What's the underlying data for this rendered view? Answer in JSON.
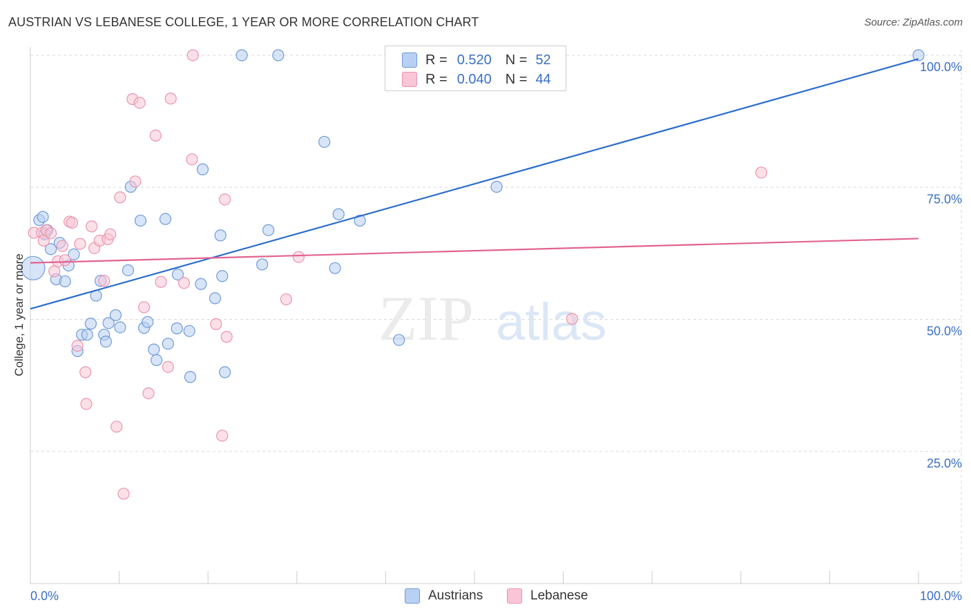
{
  "title": "AUSTRIAN VS LEBANESE COLLEGE, 1 YEAR OR MORE CORRELATION CHART",
  "source": "Source: ZipAtlas.com",
  "watermark": {
    "zip": "ZIP",
    "atlas": "atlas"
  },
  "colors": {
    "austrians_fill": "#b8d0f2",
    "austrians_stroke": "#6f9ad8",
    "austrians_line": "#2a6ccc",
    "lebanese_fill": "#f8c6d6",
    "lebanese_stroke": "#eb93ae",
    "lebanese_line": "#e2628e",
    "axis_text": "#3a6fc4",
    "grid": "#d8d8d8"
  },
  "legend": {
    "r_label": "R =",
    "n_label": "N =",
    "rows": [
      {
        "series": "Austrians",
        "r": "0.520",
        "n": "52"
      },
      {
        "series": "Lebanese",
        "r": "0.040",
        "n": "44"
      }
    ]
  },
  "bottom_legend": [
    "Austrians",
    "Lebanese"
  ],
  "chart_data": {
    "type": "scatter",
    "title": "AUSTRIAN VS LEBANESE COLLEGE, 1 YEAR OR MORE CORRELATION CHART",
    "xlabel": "",
    "ylabel": "College, 1 year or more",
    "xlim": [
      0,
      100
    ],
    "ylim": [
      0,
      100
    ],
    "x_tick_labels": [
      "0.0%",
      "100.0%"
    ],
    "y_tick_labels": [
      {
        "value": 25,
        "label": "25.0%"
      },
      {
        "value": 50,
        "label": "50.0%"
      },
      {
        "value": 75,
        "label": "75.0%"
      },
      {
        "value": 100,
        "label": "100.0%"
      }
    ],
    "grid": true,
    "legend_position": "top-center",
    "series": [
      {
        "name": "Austrians",
        "r": 0.52,
        "n": 52,
        "trend": [
          [
            0,
            52.0
          ],
          [
            100,
            99.3
          ]
        ],
        "points": [
          [
            1.0,
            68.8
          ],
          [
            1.4,
            69.4
          ],
          [
            1.9,
            66.9
          ],
          [
            2.3,
            63.3
          ],
          [
            3.3,
            64.5
          ],
          [
            2.9,
            57.6
          ],
          [
            3.9,
            57.2
          ],
          [
            4.3,
            60.2
          ],
          [
            4.9,
            62.3
          ],
          [
            5.3,
            44.0
          ],
          [
            5.8,
            47.1
          ],
          [
            6.4,
            47.1
          ],
          [
            6.8,
            49.2
          ],
          [
            7.4,
            54.5
          ],
          [
            7.9,
            57.3
          ],
          [
            8.3,
            47.1
          ],
          [
            8.5,
            45.8
          ],
          [
            8.8,
            49.3
          ],
          [
            9.6,
            50.8
          ],
          [
            10.1,
            48.5
          ],
          [
            11.0,
            59.3
          ],
          [
            11.3,
            75.1
          ],
          [
            12.4,
            68.7
          ],
          [
            12.8,
            48.4
          ],
          [
            13.2,
            49.5
          ],
          [
            13.9,
            44.3
          ],
          [
            14.2,
            42.3
          ],
          [
            15.2,
            69.0
          ],
          [
            15.5,
            45.4
          ],
          [
            16.5,
            48.3
          ],
          [
            16.6,
            58.5
          ],
          [
            17.9,
            47.8
          ],
          [
            18.0,
            39.1
          ],
          [
            19.2,
            56.7
          ],
          [
            19.4,
            78.4
          ],
          [
            20.8,
            54.0
          ],
          [
            21.4,
            65.9
          ],
          [
            21.6,
            58.2
          ],
          [
            21.9,
            40.0
          ],
          [
            23.8,
            100.0
          ],
          [
            26.1,
            60.4
          ],
          [
            26.8,
            66.9
          ],
          [
            27.9,
            100.0
          ],
          [
            33.1,
            83.6
          ],
          [
            34.3,
            59.7
          ],
          [
            34.7,
            69.9
          ],
          [
            37.1,
            68.7
          ],
          [
            41.5,
            46.1
          ],
          [
            52.5,
            75.1
          ],
          [
            100.0,
            100.0
          ],
          [
            0.3,
            59.7
          ],
          [
            1.6,
            66.1
          ]
        ]
      },
      {
        "name": "Lebanese",
        "r": 0.04,
        "n": 44,
        "trend": [
          [
            0,
            60.7
          ],
          [
            100,
            65.3
          ]
        ],
        "points": [
          [
            0.4,
            66.4
          ],
          [
            1.3,
            66.4
          ],
          [
            1.5,
            64.9
          ],
          [
            1.8,
            66.9
          ],
          [
            2.3,
            66.3
          ],
          [
            2.7,
            59.1
          ],
          [
            3.1,
            61.0
          ],
          [
            3.6,
            63.9
          ],
          [
            3.9,
            61.2
          ],
          [
            4.4,
            68.5
          ],
          [
            4.7,
            68.3
          ],
          [
            5.3,
            45.0
          ],
          [
            5.6,
            64.3
          ],
          [
            6.2,
            40.0
          ],
          [
            6.3,
            34.0
          ],
          [
            6.9,
            67.6
          ],
          [
            7.2,
            63.5
          ],
          [
            7.8,
            64.9
          ],
          [
            8.3,
            57.3
          ],
          [
            8.7,
            65.2
          ],
          [
            9.0,
            66.1
          ],
          [
            9.7,
            29.7
          ],
          [
            10.1,
            73.1
          ],
          [
            10.5,
            17.0
          ],
          [
            11.5,
            91.7
          ],
          [
            11.8,
            76.1
          ],
          [
            12.3,
            91.0
          ],
          [
            12.8,
            52.3
          ],
          [
            13.3,
            36.0
          ],
          [
            14.1,
            84.8
          ],
          [
            14.7,
            57.1
          ],
          [
            15.5,
            41.0
          ],
          [
            15.8,
            91.8
          ],
          [
            17.3,
            56.9
          ],
          [
            18.3,
            100.0
          ],
          [
            18.2,
            80.3
          ],
          [
            20.9,
            49.1
          ],
          [
            21.6,
            28.0
          ],
          [
            21.9,
            72.7
          ],
          [
            22.1,
            46.7
          ],
          [
            28.8,
            53.8
          ],
          [
            30.2,
            61.8
          ],
          [
            61.0,
            50.1
          ],
          [
            82.3,
            77.8
          ]
        ]
      }
    ]
  }
}
